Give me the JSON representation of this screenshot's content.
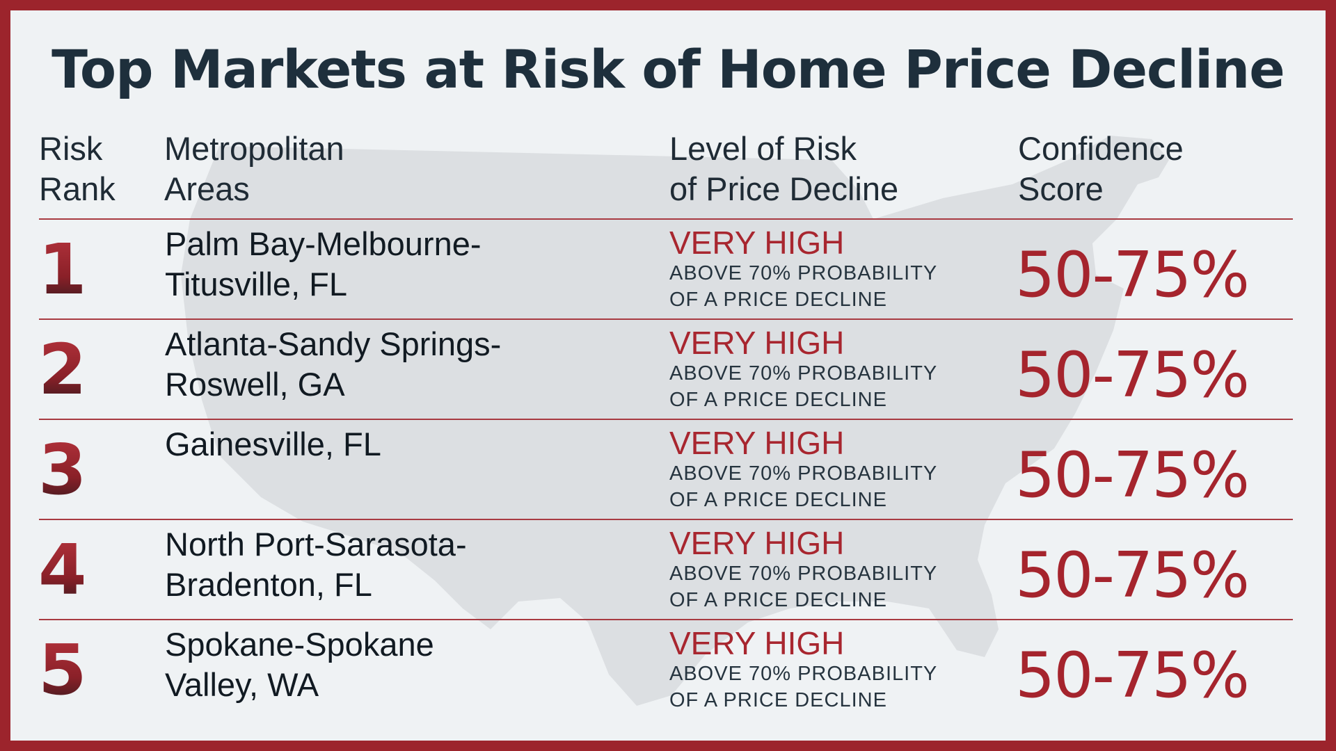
{
  "title": "Top Markets at Risk of Home Price Decline",
  "headers": {
    "rank": [
      "Risk",
      "Rank"
    ],
    "metro": [
      "Metropolitan",
      "Areas"
    ],
    "level": [
      "Level of Risk",
      "of Price Decline"
    ],
    "confidence": [
      "Confidence",
      "Score"
    ]
  },
  "rows": [
    {
      "rank": "1",
      "metro": [
        "Palm Bay-Melbourne-",
        "Titusville, FL"
      ],
      "level": "VERY HIGH",
      "level_desc": [
        "ABOVE 70% PROBABILITY",
        "OF A PRICE DECLINE"
      ],
      "confidence": "50-75%"
    },
    {
      "rank": "2",
      "metro": [
        "Atlanta-Sandy Springs-",
        "Roswell, GA"
      ],
      "level": "VERY HIGH",
      "level_desc": [
        "ABOVE 70% PROBABILITY",
        "OF A PRICE DECLINE"
      ],
      "confidence": "50-75%"
    },
    {
      "rank": "3",
      "metro": [
        "Gainesville, FL",
        ""
      ],
      "level": "VERY HIGH",
      "level_desc": [
        "ABOVE 70% PROBABILITY",
        "OF A PRICE DECLINE"
      ],
      "confidence": "50-75%"
    },
    {
      "rank": "4",
      "metro": [
        "North Port-Sarasota-",
        "Bradenton, FL"
      ],
      "level": "VERY HIGH",
      "level_desc": [
        "ABOVE 70% PROBABILITY",
        "OF A PRICE DECLINE"
      ],
      "confidence": "50-75%"
    },
    {
      "rank": "5",
      "metro": [
        "Spokane-Spokane",
        "Valley, WA"
      ],
      "level": "VERY HIGH",
      "level_desc": [
        "ABOVE 70% PROBABILITY",
        "OF A PRICE DECLINE"
      ],
      "confidence": "50-75%"
    }
  ],
  "colors": {
    "frame": "#9c242c",
    "background": "#eff2f4",
    "title": "#1e2f3c",
    "accent": "#a8262f",
    "map": "#d9dcdf"
  }
}
